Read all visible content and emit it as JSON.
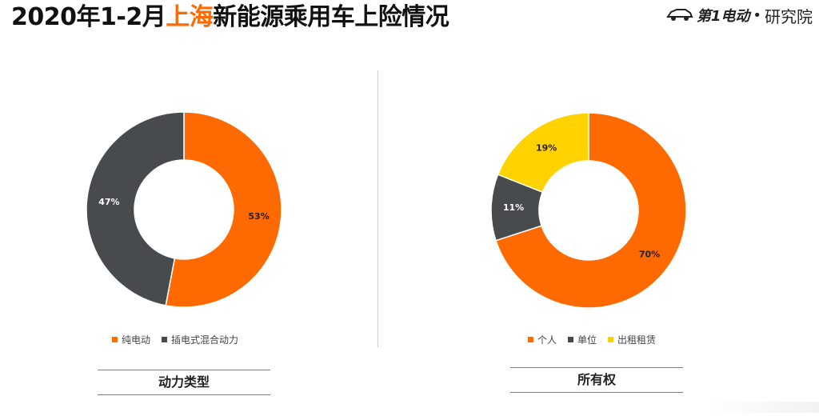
{
  "title": {
    "prefix": "2020年1-2月",
    "highlight": "上海",
    "suffix": "新能源乘用车上险情况"
  },
  "brand": {
    "logo_text": "第1电动",
    "separator": "•",
    "sub": "研究院"
  },
  "colors": {
    "orange": "#ff6a00",
    "dark_gray": "#474b4e",
    "yellow": "#ffd200",
    "title_highlight": "#ff6a00"
  },
  "chart_data": [
    {
      "type": "pie",
      "variant": "donut",
      "caption": "动力类型",
      "categories": [
        "纯电动",
        "插电式混合动力"
      ],
      "values": [
        53,
        47
      ],
      "labels": [
        "53%",
        "47%"
      ],
      "colors": [
        "#ff6a00",
        "#474b4e"
      ],
      "legend": "bottom"
    },
    {
      "type": "pie",
      "variant": "donut",
      "caption": "所有权",
      "categories": [
        "个人",
        "单位",
        "出租租赁"
      ],
      "values": [
        70,
        11,
        19
      ],
      "labels": [
        "70%",
        "11%",
        "19%"
      ],
      "colors": [
        "#ff6a00",
        "#474b4e",
        "#ffd200"
      ],
      "legend": "bottom"
    }
  ]
}
